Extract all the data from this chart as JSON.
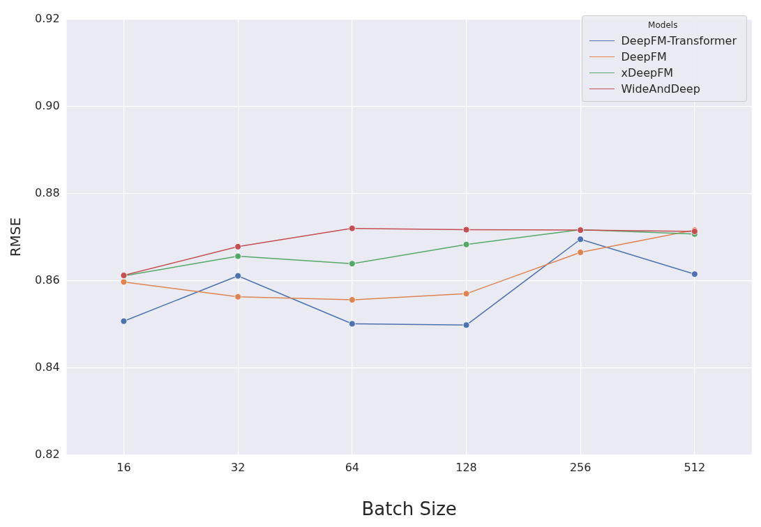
{
  "chart_data": {
    "type": "line",
    "xlabel": "Batch Size",
    "ylabel": "RMSE",
    "legend_title": "Models",
    "categories": [
      "16",
      "32",
      "64",
      "128",
      "256",
      "512"
    ],
    "series": [
      {
        "name": "DeepFM-Transformer",
        "color": "#4c72b0",
        "values": [
          0.8507,
          0.8611,
          0.8501,
          0.8498,
          0.8695,
          0.8615
        ]
      },
      {
        "name": "DeepFM",
        "color": "#dd8452",
        "values": [
          0.8597,
          0.8563,
          0.8556,
          0.857,
          0.8665,
          0.8716
        ]
      },
      {
        "name": "xDeepFM",
        "color": "#55a868",
        "values": [
          0.8611,
          0.8656,
          0.8639,
          0.8683,
          0.8717,
          0.8707
        ]
      },
      {
        "name": "WideAndDeep",
        "color": "#c44e52",
        "values": [
          0.8612,
          0.8678,
          0.872,
          0.8717,
          0.8716,
          0.8713
        ]
      }
    ],
    "ylim": [
      0.82,
      0.92
    ],
    "yticks": [
      0.82,
      0.84,
      0.86,
      0.88,
      {
        "value": 0.9,
        "label": "0.90"
      },
      0.92
    ],
    "grid": true,
    "legend": "top right",
    "marker": "circle",
    "line_style": "solid"
  }
}
